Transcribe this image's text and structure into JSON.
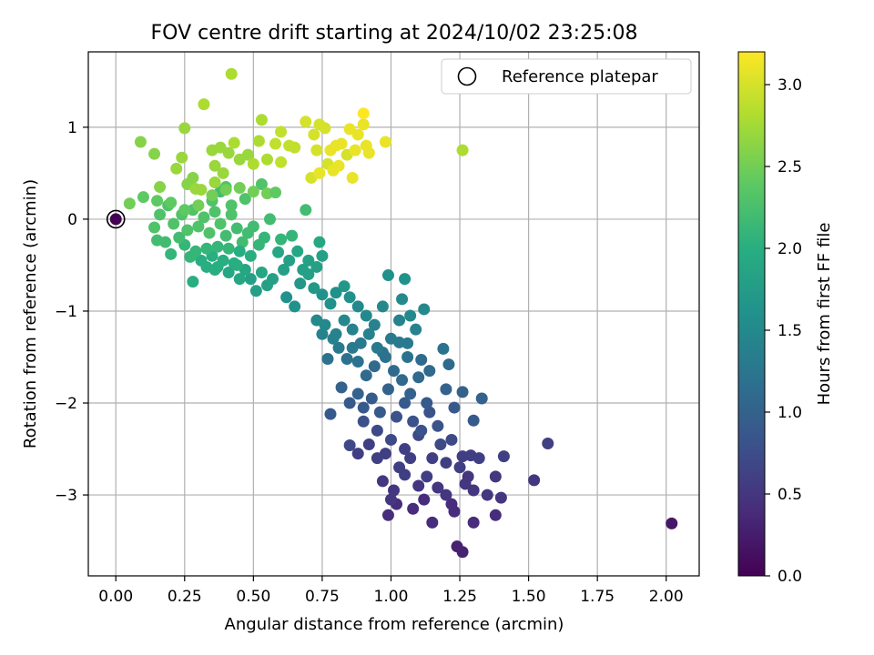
{
  "chart_data": {
    "type": "scatter",
    "title": "FOV centre drift starting at 2024/10/02 23:25:08",
    "xlabel": "Angular distance from reference (arcmin)",
    "ylabel": "Rotation from reference (arcmin)",
    "xlim": [
      -0.1,
      2.12
    ],
    "ylim": [
      -3.88,
      1.82
    ],
    "xticks": [
      0.0,
      0.25,
      0.5,
      0.75,
      1.0,
      1.25,
      1.5,
      1.75,
      2.0
    ],
    "xtick_labels": [
      "0.00",
      "0.25",
      "0.50",
      "0.75",
      "1.00",
      "1.25",
      "1.50",
      "1.75",
      "2.00"
    ],
    "yticks": [
      1,
      0,
      -1,
      -2,
      -3
    ],
    "ytick_labels": [
      "1",
      "0",
      "−1",
      "−2",
      "−3"
    ],
    "grid": true,
    "legend": {
      "position": "top-right",
      "entries": [
        "Reference platepar"
      ]
    },
    "reference_point": {
      "x": 0.0,
      "y": 0.0
    },
    "colorbar": {
      "label": "Hours from first FF file",
      "colormap": "viridis",
      "range": [
        0.0,
        3.2
      ],
      "ticks": [
        0.0,
        0.5,
        1.0,
        1.5,
        2.0,
        2.5,
        3.0
      ],
      "tick_labels": [
        "0.0",
        "0.5",
        "1.0",
        "1.5",
        "2.0",
        "2.5",
        "3.0"
      ]
    },
    "points": [
      [
        0.0,
        0.0,
        0.0
      ],
      [
        2.02,
        -3.31,
        0.2
      ],
      [
        1.57,
        -2.44,
        0.6
      ],
      [
        1.52,
        -2.84,
        0.5
      ],
      [
        1.41,
        -2.58,
        0.6
      ],
      [
        1.4,
        -3.03,
        0.5
      ],
      [
        1.38,
        -3.22,
        0.4
      ],
      [
        1.38,
        -2.8,
        0.5
      ],
      [
        1.3,
        -3.3,
        0.4
      ],
      [
        1.29,
        -2.57,
        0.6
      ],
      [
        1.27,
        -2.88,
        0.5
      ],
      [
        1.26,
        -3.62,
        0.3
      ],
      [
        1.24,
        -3.56,
        0.3
      ],
      [
        1.23,
        -3.18,
        0.4
      ],
      [
        1.22,
        -3.1,
        0.4
      ],
      [
        1.2,
        -3.0,
        0.5
      ],
      [
        1.17,
        -2.92,
        0.5
      ],
      [
        1.15,
        -3.3,
        0.4
      ],
      [
        1.12,
        -3.05,
        0.4
      ],
      [
        1.1,
        -2.9,
        0.5
      ],
      [
        1.08,
        -3.15,
        0.4
      ],
      [
        1.05,
        -2.78,
        0.6
      ],
      [
        1.02,
        -3.1,
        0.4
      ],
      [
        1.0,
        -3.05,
        0.5
      ],
      [
        0.99,
        -3.22,
        0.4
      ],
      [
        0.97,
        -2.85,
        0.5
      ],
      [
        0.95,
        -2.6,
        0.6
      ],
      [
        0.92,
        -2.45,
        0.6
      ],
      [
        0.88,
        -2.55,
        0.6
      ],
      [
        0.85,
        -2.46,
        0.7
      ],
      [
        0.9,
        -2.2,
        0.8
      ],
      [
        0.95,
        -2.3,
        0.7
      ],
      [
        1.0,
        -2.4,
        0.7
      ],
      [
        1.05,
        -2.5,
        0.6
      ],
      [
        1.1,
        -2.35,
        0.7
      ],
      [
        1.15,
        -2.6,
        0.6
      ],
      [
        1.18,
        -2.45,
        0.7
      ],
      [
        1.2,
        -2.65,
        0.6
      ],
      [
        1.22,
        -2.4,
        0.7
      ],
      [
        1.25,
        -2.7,
        0.6
      ],
      [
        1.26,
        -2.58,
        0.6
      ],
      [
        1.28,
        -2.8,
        0.5
      ],
      [
        1.3,
        -2.95,
        0.5
      ],
      [
        1.32,
        -2.6,
        0.6
      ],
      [
        1.35,
        -3.0,
        0.5
      ],
      [
        1.13,
        -2.8,
        0.6
      ],
      [
        1.07,
        -2.6,
        0.6
      ],
      [
        1.03,
        -2.7,
        0.6
      ],
      [
        0.98,
        -2.55,
        0.6
      ],
      [
        1.01,
        -2.95,
        0.5
      ],
      [
        0.78,
        -2.12,
        0.9
      ],
      [
        0.82,
        -1.83,
        1.0
      ],
      [
        0.85,
        -2.0,
        0.9
      ],
      [
        0.88,
        -1.9,
        1.0
      ],
      [
        0.9,
        -2.05,
        0.9
      ],
      [
        0.93,
        -1.95,
        0.9
      ],
      [
        0.96,
        -2.1,
        0.9
      ],
      [
        0.99,
        -1.85,
        1.0
      ],
      [
        1.02,
        -2.15,
        0.8
      ],
      [
        1.05,
        -2.0,
        0.9
      ],
      [
        1.08,
        -2.2,
        0.8
      ],
      [
        1.11,
        -2.3,
        0.8
      ],
      [
        1.14,
        -2.1,
        0.8
      ],
      [
        1.17,
        -2.25,
        0.8
      ],
      [
        1.2,
        -1.85,
        1.0
      ],
      [
        1.23,
        -2.05,
        0.9
      ],
      [
        1.26,
        -1.88,
        1.0
      ],
      [
        1.3,
        -2.19,
        0.9
      ],
      [
        1.33,
        -1.95,
        1.0
      ],
      [
        1.21,
        -1.58,
        1.1
      ],
      [
        1.19,
        -1.41,
        1.2
      ],
      [
        1.14,
        -1.65,
        1.1
      ],
      [
        1.11,
        -1.53,
        1.1
      ],
      [
        1.06,
        -1.5,
        1.2
      ],
      [
        1.03,
        -1.34,
        1.3
      ],
      [
        1.0,
        -1.3,
        1.3
      ],
      [
        0.97,
        -1.45,
        1.2
      ],
      [
        0.94,
        -1.6,
        1.1
      ],
      [
        0.91,
        -1.7,
        1.1
      ],
      [
        0.88,
        -1.55,
        1.2
      ],
      [
        0.86,
        -1.4,
        1.3
      ],
      [
        0.84,
        -1.52,
        1.2
      ],
      [
        0.81,
        -1.4,
        1.3
      ],
      [
        0.79,
        -1.3,
        1.4
      ],
      [
        0.77,
        -1.52,
        1.2
      ],
      [
        0.75,
        -1.25,
        1.4
      ],
      [
        0.73,
        -1.1,
        1.5
      ],
      [
        0.76,
        -1.15,
        1.5
      ],
      [
        0.8,
        -1.25,
        1.4
      ],
      [
        0.83,
        -1.1,
        1.5
      ],
      [
        0.86,
        -1.2,
        1.4
      ],
      [
        0.89,
        -1.35,
        1.3
      ],
      [
        0.92,
        -1.25,
        1.4
      ],
      [
        0.95,
        -1.4,
        1.3
      ],
      [
        0.98,
        -1.5,
        1.2
      ],
      [
        1.01,
        -1.65,
        1.1
      ],
      [
        1.04,
        -1.75,
        1.1
      ],
      [
        1.07,
        -1.9,
        1.0
      ],
      [
        1.1,
        -1.72,
        1.1
      ],
      [
        1.13,
        -2.0,
        0.9
      ],
      [
        0.99,
        -0.61,
        1.6
      ],
      [
        1.05,
        -0.65,
        1.6
      ],
      [
        1.04,
        -0.87,
        1.5
      ],
      [
        1.07,
        -1.05,
        1.5
      ],
      [
        1.12,
        -0.98,
        1.5
      ],
      [
        1.09,
        -1.2,
        1.4
      ],
      [
        1.06,
        -1.35,
        1.3
      ],
      [
        1.03,
        -1.1,
        1.4
      ],
      [
        0.97,
        -0.95,
        1.5
      ],
      [
        0.94,
        -1.15,
        1.4
      ],
      [
        0.91,
        -1.05,
        1.5
      ],
      [
        0.88,
        -0.95,
        1.5
      ],
      [
        0.85,
        -0.85,
        1.6
      ],
      [
        0.83,
        -0.73,
        1.7
      ],
      [
        0.8,
        -0.8,
        1.6
      ],
      [
        0.78,
        -0.92,
        1.6
      ],
      [
        0.75,
        -0.82,
        1.6
      ],
      [
        0.72,
        -0.75,
        1.7
      ],
      [
        0.7,
        -0.6,
        1.8
      ],
      [
        0.67,
        -0.7,
        1.7
      ],
      [
        0.65,
        -0.95,
        1.6
      ],
      [
        0.62,
        -0.85,
        1.6
      ],
      [
        0.74,
        -0.25,
        1.9
      ],
      [
        0.75,
        -0.4,
        1.8
      ],
      [
        0.73,
        -0.52,
        1.8
      ],
      [
        0.7,
        -0.45,
        1.8
      ],
      [
        0.68,
        -0.55,
        1.8
      ],
      [
        0.66,
        -0.35,
        1.9
      ],
      [
        0.63,
        -0.45,
        1.8
      ],
      [
        0.61,
        -0.55,
        1.8
      ],
      [
        0.59,
        -0.36,
        1.9
      ],
      [
        0.57,
        -0.65,
        1.8
      ],
      [
        0.55,
        -0.72,
        1.8
      ],
      [
        0.53,
        -0.58,
        1.9
      ],
      [
        0.51,
        -0.78,
        1.8
      ],
      [
        0.49,
        -0.65,
        1.8
      ],
      [
        0.47,
        -0.55,
        1.9
      ],
      [
        0.45,
        -0.65,
        1.9
      ],
      [
        0.43,
        -0.48,
        2.0
      ],
      [
        0.41,
        -0.58,
        1.9
      ],
      [
        0.39,
        -0.45,
        2.0
      ],
      [
        0.37,
        -0.52,
        2.0
      ],
      [
        0.35,
        -0.4,
        2.0
      ],
      [
        0.33,
        -0.32,
        2.1
      ],
      [
        0.31,
        -0.45,
        2.0
      ],
      [
        0.29,
        -0.35,
        2.1
      ],
      [
        0.27,
        -0.41,
        2.1
      ],
      [
        0.25,
        -0.28,
        2.1
      ],
      [
        0.23,
        -0.2,
        2.2
      ],
      [
        0.2,
        -0.38,
        2.1
      ],
      [
        0.18,
        -0.25,
        2.2
      ],
      [
        0.15,
        -0.23,
        2.2
      ],
      [
        0.14,
        -0.09,
        2.3
      ],
      [
        0.16,
        0.05,
        2.3
      ],
      [
        0.19,
        0.15,
        2.3
      ],
      [
        0.21,
        -0.05,
        2.3
      ],
      [
        0.24,
        0.05,
        2.3
      ],
      [
        0.26,
        -0.12,
        2.3
      ],
      [
        0.28,
        0.1,
        2.3
      ],
      [
        0.3,
        -0.08,
        2.3
      ],
      [
        0.32,
        0.02,
        2.3
      ],
      [
        0.34,
        -0.15,
        2.3
      ],
      [
        0.36,
        0.08,
        2.3
      ],
      [
        0.38,
        -0.05,
        2.3
      ],
      [
        0.4,
        -0.18,
        2.2
      ],
      [
        0.42,
        0.05,
        2.3
      ],
      [
        0.44,
        -0.1,
        2.2
      ],
      [
        0.46,
        -0.25,
        2.2
      ],
      [
        0.48,
        -0.15,
        2.2
      ],
      [
        0.5,
        -0.08,
        2.2
      ],
      [
        0.52,
        -0.28,
        2.1
      ],
      [
        0.54,
        -0.2,
        2.1
      ],
      [
        0.56,
        0.0,
        2.2
      ],
      [
        0.6,
        -0.22,
        2.1
      ],
      [
        0.64,
        -0.18,
        2.1
      ],
      [
        0.69,
        0.1,
        2.2
      ],
      [
        0.37,
        -0.3,
        2.1
      ],
      [
        0.41,
        -0.32,
        2.1
      ],
      [
        0.33,
        -0.52,
        2.0
      ],
      [
        0.28,
        -0.68,
        2.0
      ],
      [
        0.45,
        -0.35,
        2.0
      ],
      [
        0.49,
        -0.4,
        2.0
      ],
      [
        0.36,
        -0.55,
        2.0
      ],
      [
        0.44,
        -0.5,
        2.0
      ],
      [
        0.38,
        0.3,
        2.2
      ],
      [
        0.4,
        0.35,
        2.3
      ],
      [
        0.35,
        0.2,
        2.3
      ],
      [
        0.42,
        0.15,
        2.3
      ],
      [
        0.47,
        0.22,
        2.3
      ],
      [
        0.53,
        0.38,
        2.3
      ],
      [
        0.1,
        0.24,
        2.4
      ],
      [
        0.15,
        0.2,
        2.4
      ],
      [
        0.2,
        0.18,
        2.4
      ],
      [
        0.25,
        0.1,
        2.4
      ],
      [
        0.3,
        0.15,
        2.5
      ],
      [
        0.35,
        0.26,
        2.5
      ],
      [
        0.4,
        0.32,
        2.5
      ],
      [
        0.45,
        0.34,
        2.5
      ],
      [
        0.5,
        0.3,
        2.5
      ],
      [
        0.55,
        0.28,
        2.5
      ],
      [
        0.58,
        0.29,
        2.4
      ],
      [
        0.05,
        0.17,
        2.5
      ],
      [
        0.09,
        0.84,
        2.6
      ],
      [
        0.14,
        0.71,
        2.6
      ],
      [
        0.16,
        0.35,
        2.6
      ],
      [
        0.22,
        0.55,
        2.7
      ],
      [
        0.24,
        0.67,
        2.7
      ],
      [
        0.26,
        0.38,
        2.6
      ],
      [
        0.28,
        0.45,
        2.6
      ],
      [
        0.25,
        0.99,
        2.7
      ],
      [
        0.32,
        1.25,
        2.8
      ],
      [
        0.42,
        1.58,
        2.8
      ],
      [
        0.53,
        1.08,
        2.8
      ],
      [
        0.35,
        0.75,
        2.7
      ],
      [
        0.38,
        0.78,
        2.7
      ],
      [
        0.41,
        0.72,
        2.7
      ],
      [
        0.43,
        0.83,
        2.8
      ],
      [
        0.45,
        0.65,
        2.7
      ],
      [
        0.48,
        0.7,
        2.7
      ],
      [
        0.5,
        0.6,
        2.8
      ],
      [
        0.52,
        0.85,
        2.8
      ],
      [
        0.55,
        0.65,
        2.8
      ],
      [
        0.58,
        0.82,
        2.9
      ],
      [
        0.36,
        0.58,
        2.7
      ],
      [
        0.39,
        0.5,
        2.7
      ],
      [
        0.29,
        0.33,
        2.7
      ],
      [
        0.31,
        0.32,
        2.7
      ],
      [
        0.36,
        0.4,
        2.7
      ],
      [
        0.6,
        0.62,
        2.9
      ],
      [
        0.6,
        0.95,
        2.9
      ],
      [
        0.63,
        0.8,
        2.9
      ],
      [
        0.65,
        0.78,
        2.9
      ],
      [
        0.69,
        1.06,
        3.0
      ],
      [
        0.71,
        0.45,
        3.0
      ],
      [
        0.72,
        0.92,
        3.0
      ],
      [
        0.73,
        0.75,
        3.0
      ],
      [
        0.74,
        1.03,
        3.0
      ],
      [
        0.76,
        0.99,
        3.0
      ],
      [
        0.77,
        0.6,
        3.0
      ],
      [
        0.78,
        0.75,
        3.1
      ],
      [
        0.8,
        0.8,
        3.1
      ],
      [
        0.82,
        0.82,
        3.1
      ],
      [
        0.84,
        0.7,
        3.0
      ],
      [
        0.85,
        0.98,
        3.1
      ],
      [
        0.86,
        0.45,
        3.1
      ],
      [
        0.87,
        0.75,
        3.1
      ],
      [
        0.88,
        0.92,
        3.1
      ],
      [
        0.9,
        1.03,
        3.1
      ],
      [
        0.9,
        1.15,
        3.2
      ],
      [
        0.91,
        0.8,
        3.1
      ],
      [
        0.92,
        0.72,
        3.1
      ],
      [
        0.98,
        0.84,
        3.1
      ],
      [
        0.74,
        0.5,
        3.1
      ],
      [
        0.79,
        0.53,
        3.1
      ],
      [
        0.81,
        0.58,
        3.1
      ],
      [
        1.26,
        0.75,
        2.8
      ]
    ]
  }
}
